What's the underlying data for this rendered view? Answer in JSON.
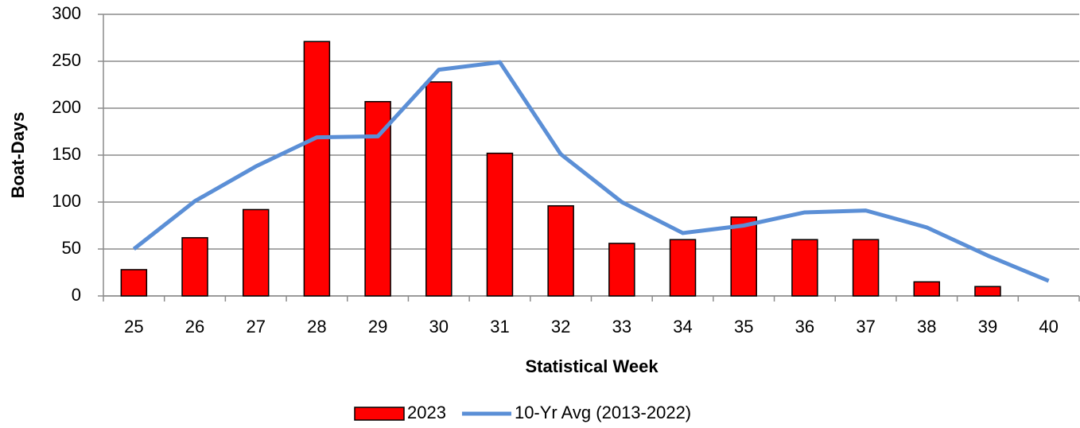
{
  "chart_data": {
    "type": "bar_line",
    "x_label": "Statistical Week",
    "y_label": "Boat-Days",
    "categories": [
      "25",
      "26",
      "27",
      "28",
      "29",
      "30",
      "31",
      "32",
      "33",
      "34",
      "35",
      "36",
      "37",
      "38",
      "39",
      "40"
    ],
    "series": [
      {
        "name": "2023",
        "type": "bar",
        "color": "#ff0000",
        "values": [
          28,
          62,
          92,
          271,
          207,
          228,
          152,
          96,
          56,
          60,
          84,
          60,
          60,
          15,
          10,
          null
        ]
      },
      {
        "name": "10-Yr Avg (2013-2022)",
        "type": "line",
        "color": "#5b8fd6",
        "values": [
          50,
          101,
          138,
          169,
          170,
          241,
          249,
          151,
          100,
          67,
          75,
          89,
          91,
          73,
          43,
          16
        ]
      }
    ],
    "ylim": [
      0,
      300
    ],
    "yticks": [
      0,
      50,
      100,
      150,
      200,
      250,
      300
    ],
    "grid": true,
    "legend": "bottom"
  }
}
